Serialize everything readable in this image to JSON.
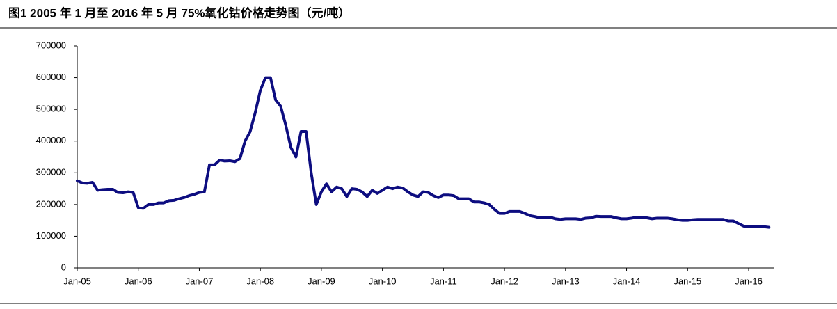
{
  "chart_data": {
    "type": "line",
    "title": "图1  2005 年 1 月至 2016 年 5 月 75%氧化钴价格走势图（元/吨）",
    "x": [
      "2005-01",
      "2005-02",
      "2005-03",
      "2005-04",
      "2005-05",
      "2005-06",
      "2005-07",
      "2005-08",
      "2005-09",
      "2005-10",
      "2005-11",
      "2005-12",
      "2006-01",
      "2006-02",
      "2006-03",
      "2006-04",
      "2006-05",
      "2006-06",
      "2006-07",
      "2006-08",
      "2006-09",
      "2006-10",
      "2006-11",
      "2006-12",
      "2007-01",
      "2007-02",
      "2007-03",
      "2007-04",
      "2007-05",
      "2007-06",
      "2007-07",
      "2007-08",
      "2007-09",
      "2007-10",
      "2007-11",
      "2007-12",
      "2008-01",
      "2008-02",
      "2008-03",
      "2008-04",
      "2008-05",
      "2008-06",
      "2008-07",
      "2008-08",
      "2008-09",
      "2008-10",
      "2008-11",
      "2008-12",
      "2009-01",
      "2009-02",
      "2009-03",
      "2009-04",
      "2009-05",
      "2009-06",
      "2009-07",
      "2009-08",
      "2009-09",
      "2009-10",
      "2009-11",
      "2009-12",
      "2010-01",
      "2010-02",
      "2010-03",
      "2010-04",
      "2010-05",
      "2010-06",
      "2010-07",
      "2010-08",
      "2010-09",
      "2010-10",
      "2010-11",
      "2010-12",
      "2011-01",
      "2011-02",
      "2011-03",
      "2011-04",
      "2011-05",
      "2011-06",
      "2011-07",
      "2011-08",
      "2011-09",
      "2011-10",
      "2011-11",
      "2011-12",
      "2012-01",
      "2012-02",
      "2012-03",
      "2012-04",
      "2012-05",
      "2012-06",
      "2012-07",
      "2012-08",
      "2012-09",
      "2012-10",
      "2012-11",
      "2012-12",
      "2013-01",
      "2013-02",
      "2013-03",
      "2013-04",
      "2013-05",
      "2013-06",
      "2013-07",
      "2013-08",
      "2013-09",
      "2013-10",
      "2013-11",
      "2013-12",
      "2014-01",
      "2014-02",
      "2014-03",
      "2014-04",
      "2014-05",
      "2014-06",
      "2014-07",
      "2014-08",
      "2014-09",
      "2014-10",
      "2014-11",
      "2014-12",
      "2015-01",
      "2015-02",
      "2015-03",
      "2015-04",
      "2015-05",
      "2015-06",
      "2015-07",
      "2015-08",
      "2015-09",
      "2015-10",
      "2015-11",
      "2015-12",
      "2016-01",
      "2016-02",
      "2016-03",
      "2016-04",
      "2016-05"
    ],
    "series": [
      {
        "name": "75%氧化钴",
        "color": "#0d0d80",
        "values": [
          275000,
          268000,
          267000,
          270000,
          245000,
          247000,
          248000,
          248000,
          238000,
          237000,
          240000,
          238000,
          190000,
          188000,
          200000,
          200000,
          205000,
          205000,
          212000,
          213000,
          218000,
          222000,
          228000,
          232000,
          238000,
          240000,
          325000,
          325000,
          340000,
          337000,
          338000,
          335000,
          345000,
          400000,
          430000,
          490000,
          560000,
          600000,
          600000,
          530000,
          510000,
          450000,
          380000,
          350000,
          430000,
          430000,
          300000,
          200000,
          240000,
          265000,
          240000,
          255000,
          250000,
          225000,
          250000,
          248000,
          240000,
          225000,
          245000,
          235000,
          245000,
          255000,
          250000,
          255000,
          252000,
          240000,
          230000,
          225000,
          240000,
          238000,
          228000,
          222000,
          230000,
          230000,
          228000,
          218000,
          218000,
          218000,
          208000,
          208000,
          205000,
          200000,
          185000,
          172000,
          172000,
          178000,
          178000,
          178000,
          172000,
          165000,
          162000,
          158000,
          160000,
          160000,
          155000,
          153000,
          155000,
          155000,
          155000,
          153000,
          157000,
          158000,
          163000,
          162000,
          162000,
          162000,
          158000,
          155000,
          155000,
          157000,
          160000,
          160000,
          158000,
          155000,
          157000,
          157000,
          157000,
          155000,
          152000,
          150000,
          150000,
          152000,
          153000,
          153000,
          153000,
          153000,
          153000,
          153000,
          148000,
          148000,
          140000,
          132000,
          130000,
          130000,
          130000,
          130000,
          128000
        ]
      }
    ],
    "ylim": [
      0,
      700000
    ],
    "yticks": [
      0,
      100000,
      200000,
      300000,
      400000,
      500000,
      600000,
      700000
    ],
    "xticks": [
      {
        "value": "2005-01",
        "label": "Jan-05"
      },
      {
        "value": "2006-01",
        "label": "Jan-06"
      },
      {
        "value": "2007-01",
        "label": "Jan-07"
      },
      {
        "value": "2008-01",
        "label": "Jan-08"
      },
      {
        "value": "2009-01",
        "label": "Jan-09"
      },
      {
        "value": "2010-01",
        "label": "Jan-10"
      },
      {
        "value": "2011-01",
        "label": "Jan-11"
      },
      {
        "value": "2012-01",
        "label": "Jan-12"
      },
      {
        "value": "2013-01",
        "label": "Jan-13"
      },
      {
        "value": "2014-01",
        "label": "Jan-14"
      },
      {
        "value": "2015-01",
        "label": "Jan-15"
      },
      {
        "value": "2016-01",
        "label": "Jan-16"
      }
    ]
  }
}
